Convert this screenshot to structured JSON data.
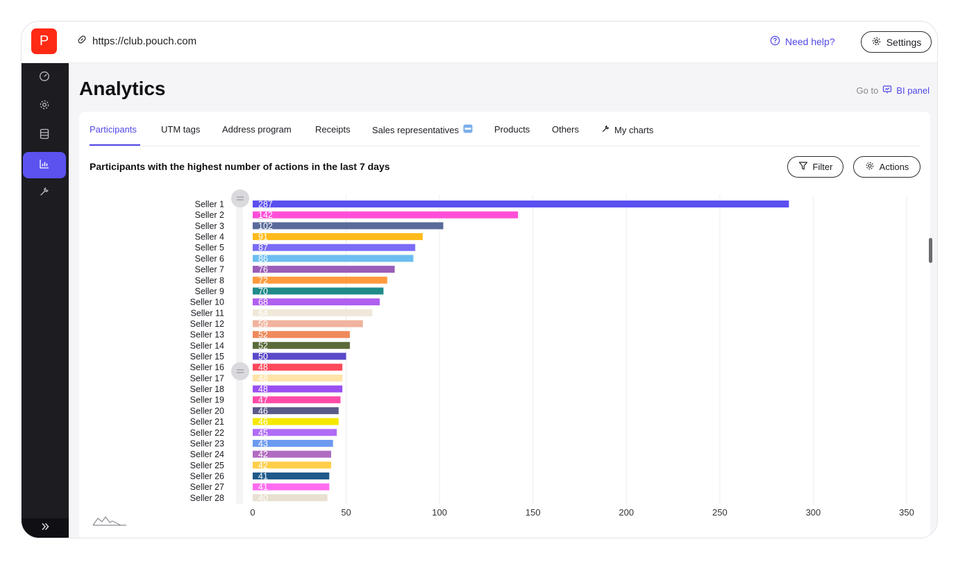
{
  "browser": {
    "url": "https://club.pouch.com",
    "logo_letter": "P"
  },
  "header": {
    "help_label": "Need help?",
    "settings_label": "Settings"
  },
  "sidebar": {
    "items": [
      {
        "icon": "dashboard-icon",
        "active": false
      },
      {
        "icon": "gear-icon",
        "active": false
      },
      {
        "icon": "database-icon",
        "active": false
      },
      {
        "icon": "bar-chart-icon",
        "active": true
      },
      {
        "icon": "wrench-icon",
        "active": false
      }
    ]
  },
  "page": {
    "title": "Analytics",
    "goto_prefix": "Go to",
    "goto_label": "BI panel"
  },
  "tabs": [
    {
      "label": "Participants",
      "active": true
    },
    {
      "label": "UTM tags",
      "active": false
    },
    {
      "label": "Address program",
      "active": false
    },
    {
      "label": "Receipts",
      "active": false
    },
    {
      "label": "Sales representatives",
      "active": false,
      "badge": "new"
    },
    {
      "label": "Products",
      "active": false
    },
    {
      "label": "Others",
      "active": false
    },
    {
      "label": "My charts",
      "active": false,
      "icon": "wrench-icon"
    }
  ],
  "chart_section": {
    "title": "Participants with the highest number of actions in the last 7 days",
    "filter_label": "Filter",
    "actions_label": "Actions"
  },
  "colors": {
    "accent": "#5146e6",
    "brand": "#ff2a14",
    "sidebar": "#1c1c21"
  },
  "chart_data": {
    "type": "bar",
    "orientation": "horizontal",
    "categories": [
      "Seller 1",
      "Seller 2",
      "Seller 3",
      "Seller 4",
      "Seller 5",
      "Seller 6",
      "Seller 7",
      "Seller 8",
      "Seller 9",
      "Seller 10",
      "Seller 11",
      "Seller 12",
      "Seller 13",
      "Seller 14",
      "Seller 15",
      "Seller 16",
      "Seller 17",
      "Seller 18",
      "Seller 19",
      "Seller 20",
      "Seller 21",
      "Seller 22",
      "Seller 23",
      "Seller 24",
      "Seller 25",
      "Seller 26",
      "Seller 27",
      "Seller 28"
    ],
    "values": [
      287,
      142,
      102,
      91,
      87,
      86,
      76,
      72,
      70,
      68,
      64,
      59,
      52,
      52,
      50,
      48,
      48,
      48,
      47,
      46,
      46,
      45,
      43,
      42,
      42,
      41,
      41,
      40
    ],
    "colors": [
      "#5b4ff0",
      "#ff4fd8",
      "#5a6a9a",
      "#ffbb1c",
      "#7a6cf6",
      "#6cbdf0",
      "#9a5db8",
      "#ff9a3c",
      "#1f8a8a",
      "#b05ff0",
      "#f0e8d8",
      "#f0b39e",
      "#f08a5c",
      "#5c6b3a",
      "#5a49c8",
      "#ff4a5c",
      "#ffe3a8",
      "#9a4ff0",
      "#ff4aa8",
      "#5a5a8a",
      "#f5e800",
      "#b06cf6",
      "#6c9af0",
      "#b06cc0",
      "#ffcf4a",
      "#1f5a8a",
      "#ff6cf0",
      "#e8e0d0"
    ],
    "xticks": [
      0,
      50,
      100,
      150,
      200,
      250,
      300,
      350
    ],
    "xlim": [
      0,
      350
    ],
    "grid": true
  }
}
